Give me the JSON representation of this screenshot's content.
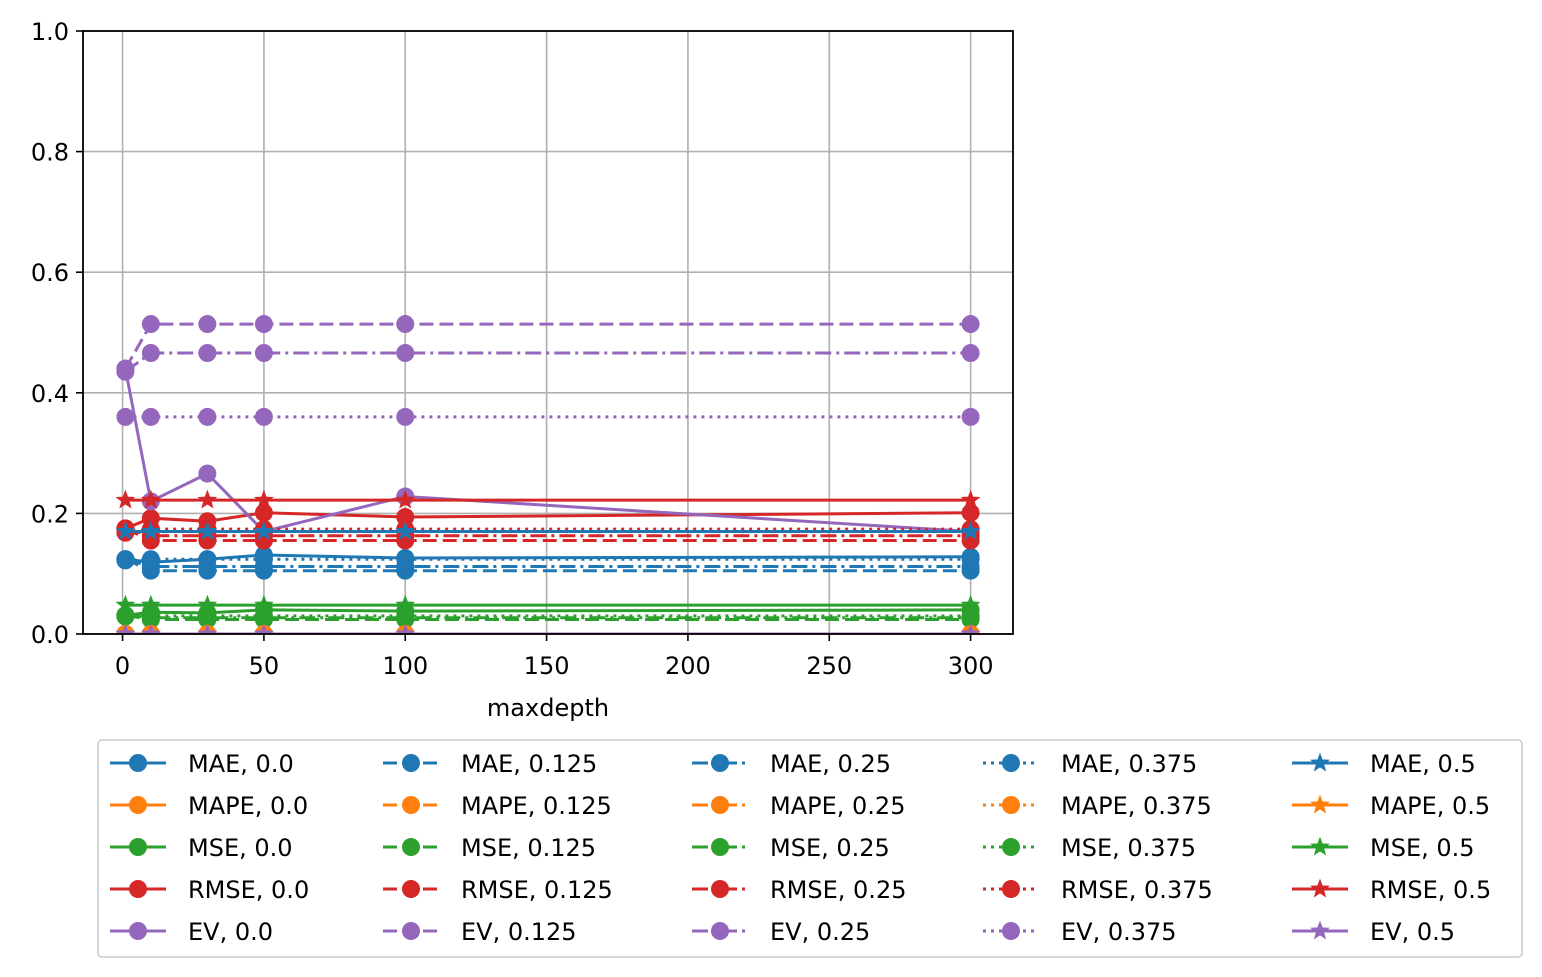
{
  "chart_data": {
    "type": "line",
    "title": "",
    "xlabel": "maxdepth",
    "ylabel": "",
    "xlim": [
      -14,
      315
    ],
    "ylim": [
      0,
      1.0
    ],
    "xticks": [
      0,
      50,
      100,
      150,
      200,
      250,
      300
    ],
    "yticks": [
      0.0,
      0.2,
      0.4,
      0.6,
      0.8,
      1.0
    ],
    "xtick_labels": [
      "0",
      "50",
      "100",
      "150",
      "200",
      "250",
      "300"
    ],
    "ytick_labels": [
      "0.0",
      "0.2",
      "0.4",
      "0.6",
      "0.8",
      "1.0"
    ],
    "grid": true,
    "legend_position": "bottom",
    "legend_columns": 5,
    "x": [
      1,
      10,
      30,
      50,
      100,
      300
    ],
    "colors": {
      "MAE": "#1f77b4",
      "MAPE": "#ff7f0e",
      "MSE": "#2ca02c",
      "RMSE": "#d62728",
      "EV": "#9467bd"
    },
    "series": [
      {
        "name": "MAE, 0.0",
        "metric": "MAE",
        "linestyle": "solid",
        "marker": "circle",
        "values": [
          0.124,
          0.119,
          0.124,
          0.131,
          0.126,
          0.128
        ]
      },
      {
        "name": "MAPE, 0.0",
        "metric": "MAPE",
        "linestyle": "solid",
        "marker": "circle",
        "values": [
          0,
          0,
          0,
          0,
          0,
          0
        ]
      },
      {
        "name": "MSE, 0.0",
        "metric": "MSE",
        "linestyle": "solid",
        "marker": "circle",
        "values": [
          0.031,
          0.036,
          0.035,
          0.04,
          0.038,
          0.04
        ]
      },
      {
        "name": "RMSE, 0.0",
        "metric": "RMSE",
        "linestyle": "solid",
        "marker": "circle",
        "values": [
          0.175,
          0.192,
          0.187,
          0.201,
          0.194,
          0.201
        ]
      },
      {
        "name": "EV, 0.0",
        "metric": "EV",
        "linestyle": "solid",
        "marker": "circle",
        "values": [
          0.44,
          0.22,
          0.266,
          0.17,
          0.228,
          0.17
        ]
      },
      {
        "name": "MAE, 0.125",
        "metric": "MAE",
        "linestyle": "dashed",
        "marker": "circle",
        "values": [
          0.124,
          0.105,
          0.105,
          0.105,
          0.105,
          0.105
        ]
      },
      {
        "name": "MAPE, 0.125",
        "metric": "MAPE",
        "linestyle": "dashed",
        "marker": "circle",
        "values": [
          0,
          0,
          0,
          0,
          0,
          0
        ]
      },
      {
        "name": "MSE, 0.125",
        "metric": "MSE",
        "linestyle": "dashed",
        "marker": "circle",
        "values": [
          0.031,
          0.024,
          0.024,
          0.024,
          0.024,
          0.024
        ]
      },
      {
        "name": "RMSE, 0.125",
        "metric": "RMSE",
        "linestyle": "dashed",
        "marker": "circle",
        "values": [
          0.175,
          0.155,
          0.155,
          0.155,
          0.155,
          0.155
        ]
      },
      {
        "name": "EV, 0.125",
        "metric": "EV",
        "linestyle": "dashed",
        "marker": "circle",
        "values": [
          0.44,
          0.514,
          0.514,
          0.514,
          0.514,
          0.514
        ]
      },
      {
        "name": "MAE, 0.25",
        "metric": "MAE",
        "linestyle": "dashdot",
        "marker": "circle",
        "values": [
          0.124,
          0.112,
          0.112,
          0.112,
          0.112,
          0.112
        ]
      },
      {
        "name": "MAPE, 0.25",
        "metric": "MAPE",
        "linestyle": "dashdot",
        "marker": "circle",
        "values": [
          0,
          0,
          0,
          0,
          0,
          0
        ]
      },
      {
        "name": "MSE, 0.25",
        "metric": "MSE",
        "linestyle": "dashdot",
        "marker": "circle",
        "values": [
          0.031,
          0.027,
          0.027,
          0.027,
          0.027,
          0.027
        ]
      },
      {
        "name": "RMSE, 0.25",
        "metric": "RMSE",
        "linestyle": "dashdot",
        "marker": "circle",
        "values": [
          0.175,
          0.163,
          0.163,
          0.163,
          0.163,
          0.163
        ]
      },
      {
        "name": "EV, 0.25",
        "metric": "EV",
        "linestyle": "dashdot",
        "marker": "circle",
        "values": [
          0.435,
          0.466,
          0.466,
          0.466,
          0.466,
          0.466
        ]
      },
      {
        "name": "MAE, 0.375",
        "metric": "MAE",
        "linestyle": "dotted",
        "marker": "circle",
        "values": [
          0.122,
          0.124,
          0.124,
          0.124,
          0.124,
          0.124
        ]
      },
      {
        "name": "MAPE, 0.375",
        "metric": "MAPE",
        "linestyle": "dotted",
        "marker": "circle",
        "values": [
          0,
          0,
          0,
          0,
          0,
          0
        ]
      },
      {
        "name": "MSE, 0.375",
        "metric": "MSE",
        "linestyle": "dotted",
        "marker": "circle",
        "values": [
          0.029,
          0.03,
          0.03,
          0.03,
          0.03,
          0.03
        ]
      },
      {
        "name": "RMSE, 0.375",
        "metric": "RMSE",
        "linestyle": "dotted",
        "marker": "circle",
        "values": [
          0.168,
          0.174,
          0.174,
          0.174,
          0.174,
          0.174
        ]
      },
      {
        "name": "EV, 0.375",
        "metric": "EV",
        "linestyle": "dotted",
        "marker": "circle",
        "values": [
          0.36,
          0.36,
          0.36,
          0.36,
          0.36,
          0.36
        ]
      },
      {
        "name": "MAE, 0.5",
        "metric": "MAE",
        "linestyle": "solid",
        "marker": "star",
        "values": [
          0.17,
          0.17,
          0.17,
          0.17,
          0.17,
          0.17
        ]
      },
      {
        "name": "MAPE, 0.5",
        "metric": "MAPE",
        "linestyle": "solid",
        "marker": "star",
        "values": [
          0,
          0,
          0,
          0,
          0,
          0
        ]
      },
      {
        "name": "MSE, 0.5",
        "metric": "MSE",
        "linestyle": "solid",
        "marker": "star",
        "values": [
          0.048,
          0.048,
          0.048,
          0.048,
          0.048,
          0.048
        ]
      },
      {
        "name": "RMSE, 0.5",
        "metric": "RMSE",
        "linestyle": "solid",
        "marker": "star",
        "values": [
          0.222,
          0.222,
          0.222,
          0.222,
          0.222,
          0.222
        ]
      },
      {
        "name": "EV, 0.5",
        "metric": "EV",
        "linestyle": "solid",
        "marker": "star",
        "values": [
          0,
          0,
          0,
          0,
          0,
          0
        ]
      }
    ]
  }
}
